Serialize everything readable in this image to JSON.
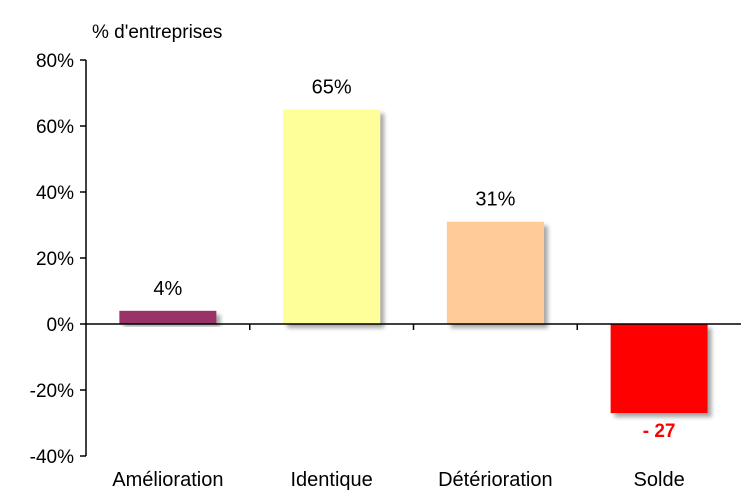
{
  "chart_data": {
    "type": "bar",
    "ylabel": "% d'entreprises",
    "categories": [
      "Amélioration",
      "Identique",
      "Détérioration",
      "Solde"
    ],
    "values": [
      4,
      65,
      31,
      -27
    ],
    "data_labels": [
      "4%",
      "65%",
      "31%",
      "- 27"
    ],
    "colors": [
      "#993366",
      "#FFFF99",
      "#FFCC99",
      "#FF0000"
    ],
    "negative_label_color": "#FF0000",
    "ylim": [
      -40,
      80
    ],
    "yticks": [
      -40,
      -20,
      0,
      20,
      40,
      60,
      80
    ],
    "ytick_labels": [
      "-40%",
      "-20%",
      "0%",
      "20%",
      "40%",
      "60%",
      "80%"
    ],
    "grid": false,
    "legend": "none"
  }
}
